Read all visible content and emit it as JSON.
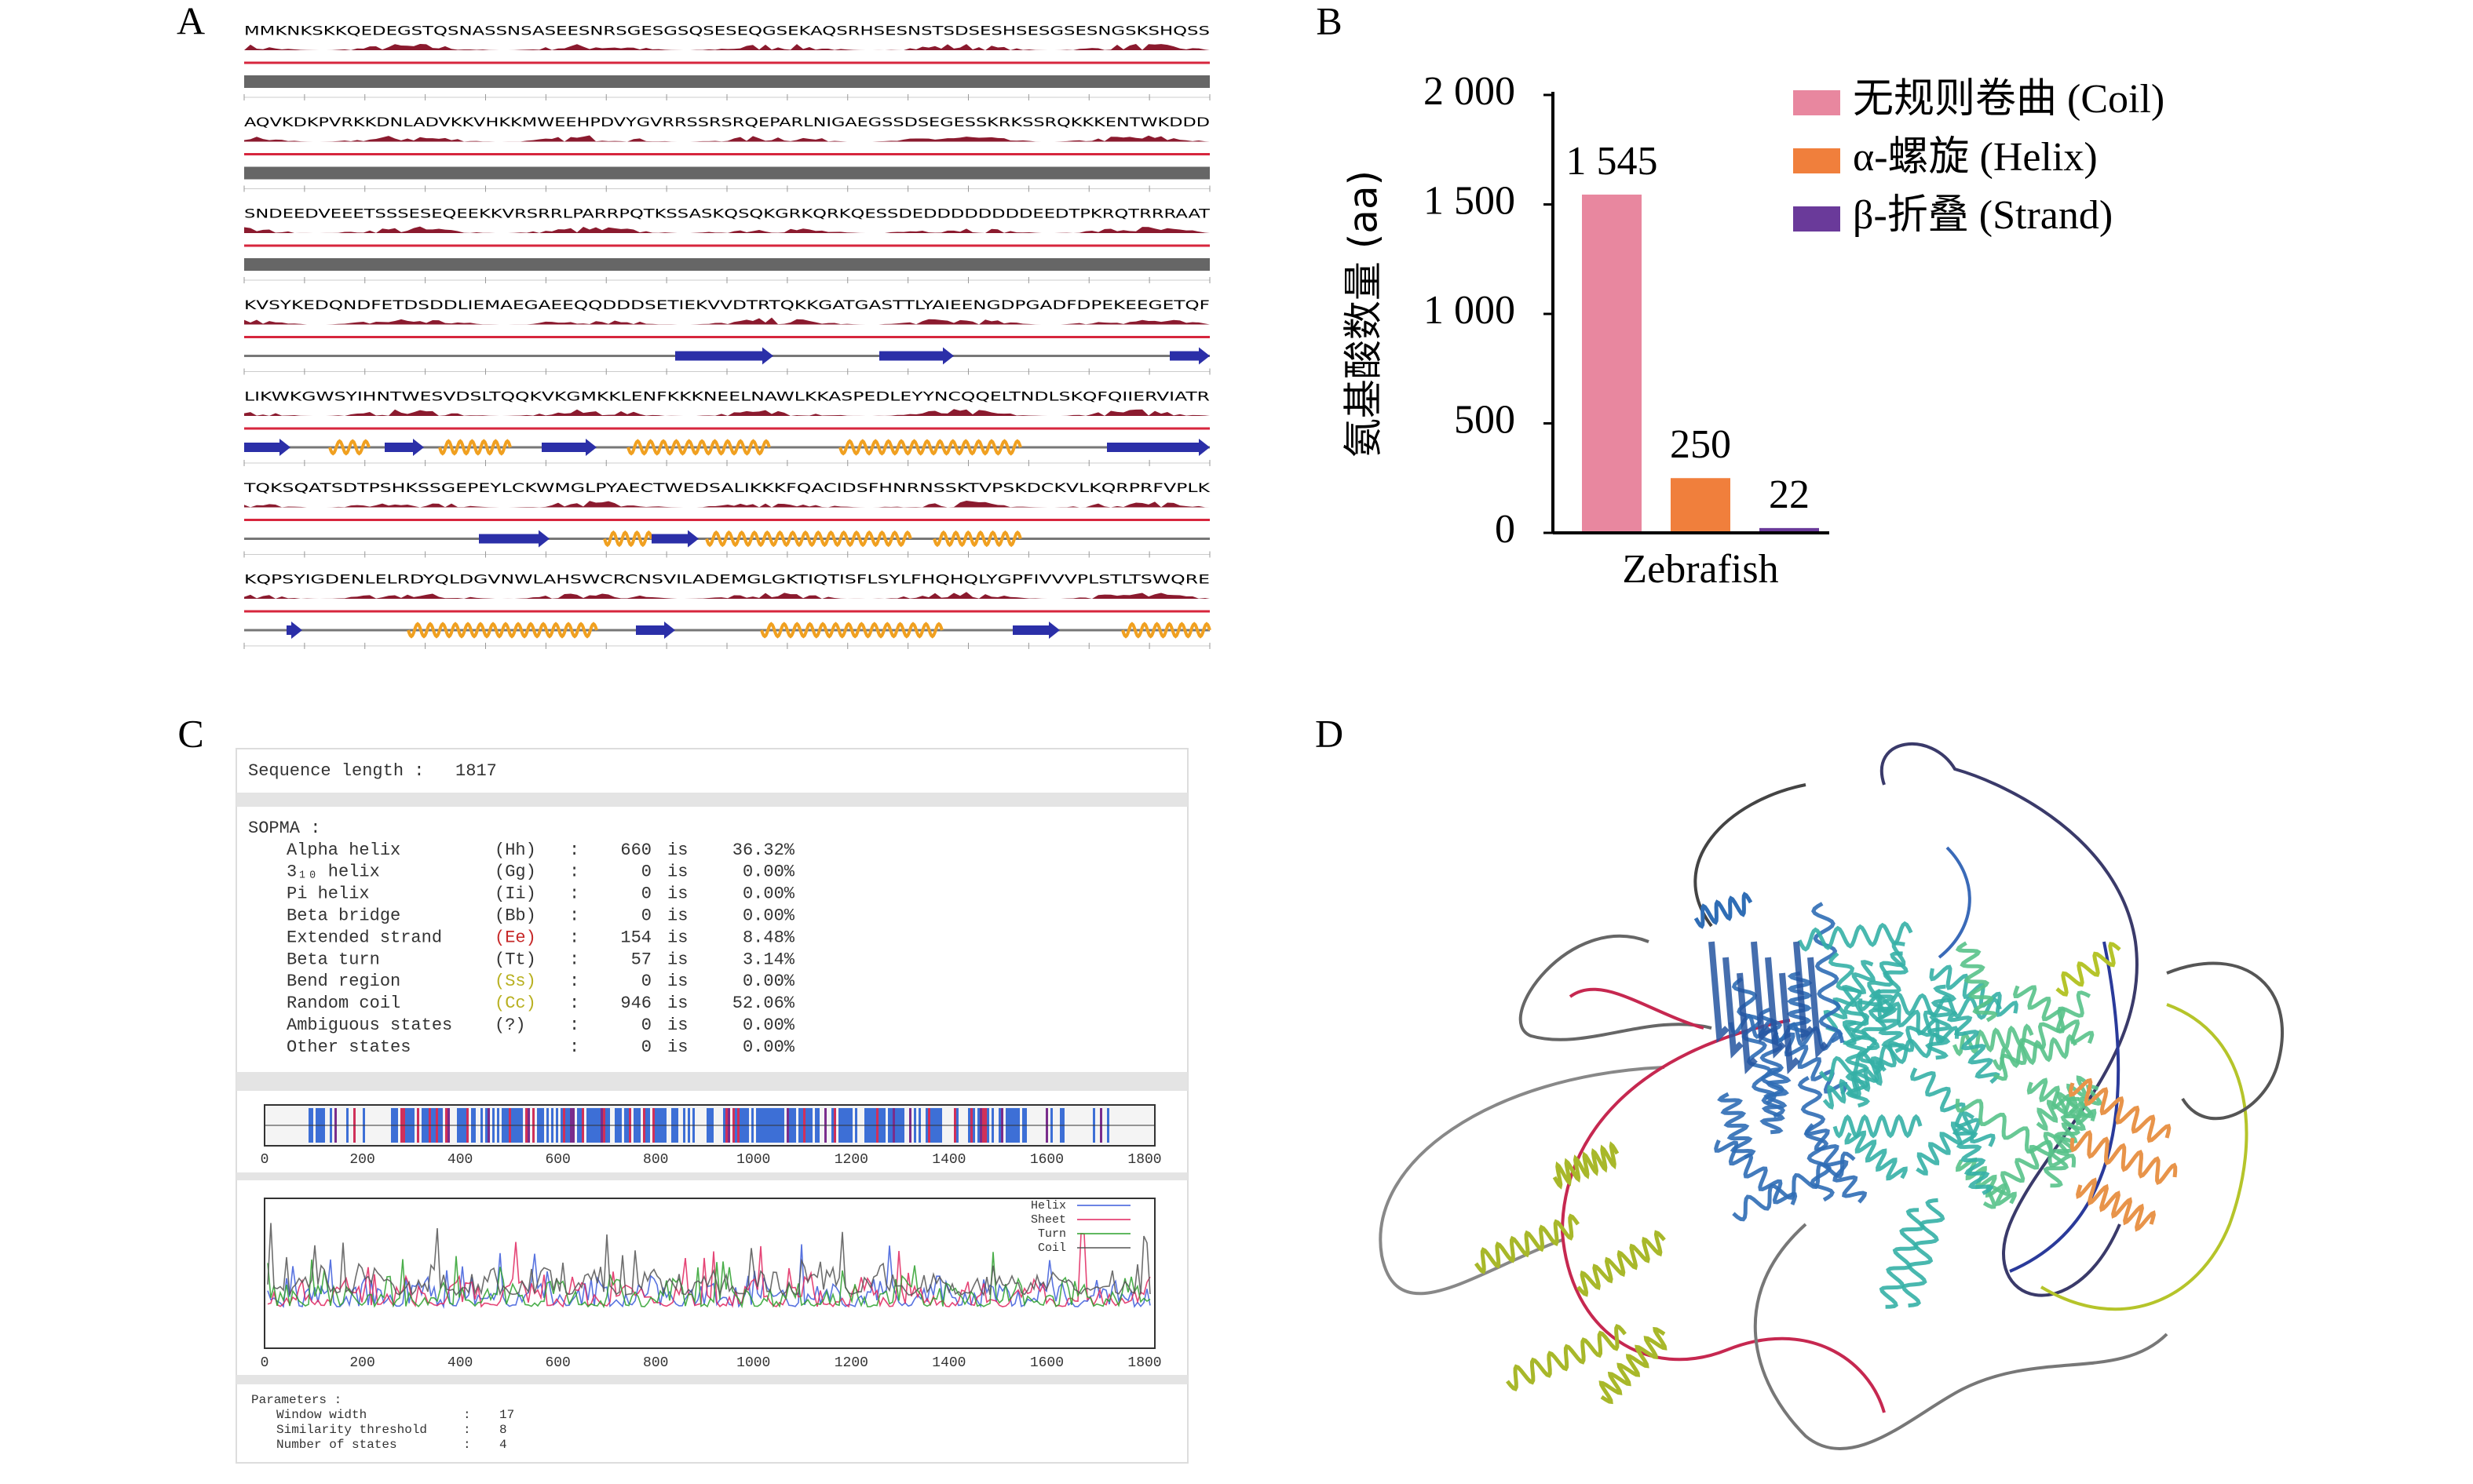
{
  "panel_labels": [
    "A",
    "B",
    "C",
    "D"
  ],
  "sequence_panel": {
    "lines": [
      "MMKNKSKKQEDEGSTQSNASSNSASEESNRSGESGSQSESEQGSEKAQSRHSESNSTSDSESHSESGSESNGSKSHQSS",
      "AQVKDKPVRKKDNLADVKKVHKKMWEEHPDVYGVRRSSRSRQEPARLNIGAEGSSDSEGESSKRKSSRQKKKENTWKDDD",
      "SNDEEDVEEETSSSESEQEEKKVRSRRLPARRPQTKSSASKQSQKGRKQRKQESSDEDDDDDDDDEEDTPKRQTRRRAAT",
      "KVSYKEDQNDFETDSDDLIEMAEGAEEQQDDDSETIEKVVDTRTQKKGATGASTTLYAIEENGDPGADFDPEKEEGETQF",
      "LIKWKGWSYIHNTWESVDSLTQQKVKGMKKLENFKKKNEELNAWLKKASPEDLEYYNCQQELTNDLSKQFQIIERVIATR",
      "TQKSQATSDTPSHKSSGEPEYLCKWMGLPYAECTWEDSALIKKKFQACIDSFHNRNSSKTVPSKDCKVLKQRPRFVPLK",
      "KQPSYIGDENLELRDYQLDGVNWLAHSWCRCNSVILADEMGLGKTIQTISFLSYLFHQHQLYGPFIVVVPLSTLTSWQRE"
    ]
  },
  "chart_data": {
    "type": "bar",
    "categories": [
      "Zebrafish"
    ],
    "y_label": "氨基酸数量 (aa)",
    "series": [
      {
        "name": "无规则卷曲 (Coil)",
        "color": "#e8879f",
        "values": [
          1545
        ],
        "value_labels": [
          "1 545"
        ]
      },
      {
        "name": "α-螺旋 (Helix)",
        "color": "#f07f3c",
        "values": [
          250
        ]
      },
      {
        "name": "β-折叠 (Strand)",
        "color": "#6a3a9a",
        "values": [
          22
        ]
      }
    ],
    "ylim": [
      0,
      2000
    ],
    "yticks": [
      0,
      500,
      {
        "value": 1000,
        "label": "1 000"
      },
      {
        "value": 1500,
        "label": "1 500"
      },
      {
        "value": 2000,
        "label": "2 000"
      }
    ],
    "legend": "upper right",
    "grid": false
  },
  "sopma": {
    "sequence_length": "Sequence length :   1817",
    "header": "SOPMA :",
    "rows": [
      [
        "Alpha helix",
        "(Hh)",
        ":",
        "660",
        "is",
        "36.32%"
      ],
      [
        "3₁₀ helix",
        "(Gg)",
        ":",
        "0",
        "is",
        "0.00%"
      ],
      [
        "Pi helix",
        "(Ii)",
        ":",
        "0",
        "is",
        "0.00%"
      ],
      [
        "Beta bridge",
        "(Bb)",
        ":",
        "0",
        "is",
        "0.00%"
      ],
      [
        "Extended strand",
        "(Ee)",
        ":",
        "154",
        "is",
        "8.48%"
      ],
      [
        "Beta turn",
        "(Tt)",
        ":",
        "57",
        "is",
        "3.14%"
      ],
      [
        "Bend region",
        "(Ss)",
        ":",
        "0",
        "is",
        "0.00%"
      ],
      [
        "Random coil",
        "(Cc)",
        ":",
        "946",
        "is",
        "52.06%"
      ],
      [
        "Ambiguous states",
        "(?)",
        ":",
        "0",
        "is",
        "0.00%"
      ],
      [
        "Other states",
        ":",
        "0",
        "is",
        "0.00%"
      ]
    ],
    "axis_ticks": [
      0,
      200,
      400,
      600,
      800,
      1000,
      1200,
      1400,
      1600,
      1800
    ],
    "legend": [
      "Helix",
      "Sheet",
      "Turn",
      "Coil"
    ],
    "parameters": {
      "title": "Parameters :",
      "rows": [
        [
          "Window width",
          ":",
          "17"
        ],
        [
          "Similarity threshold",
          ":",
          "8"
        ],
        [
          "Number of states",
          ":",
          "4"
        ]
      ]
    }
  }
}
